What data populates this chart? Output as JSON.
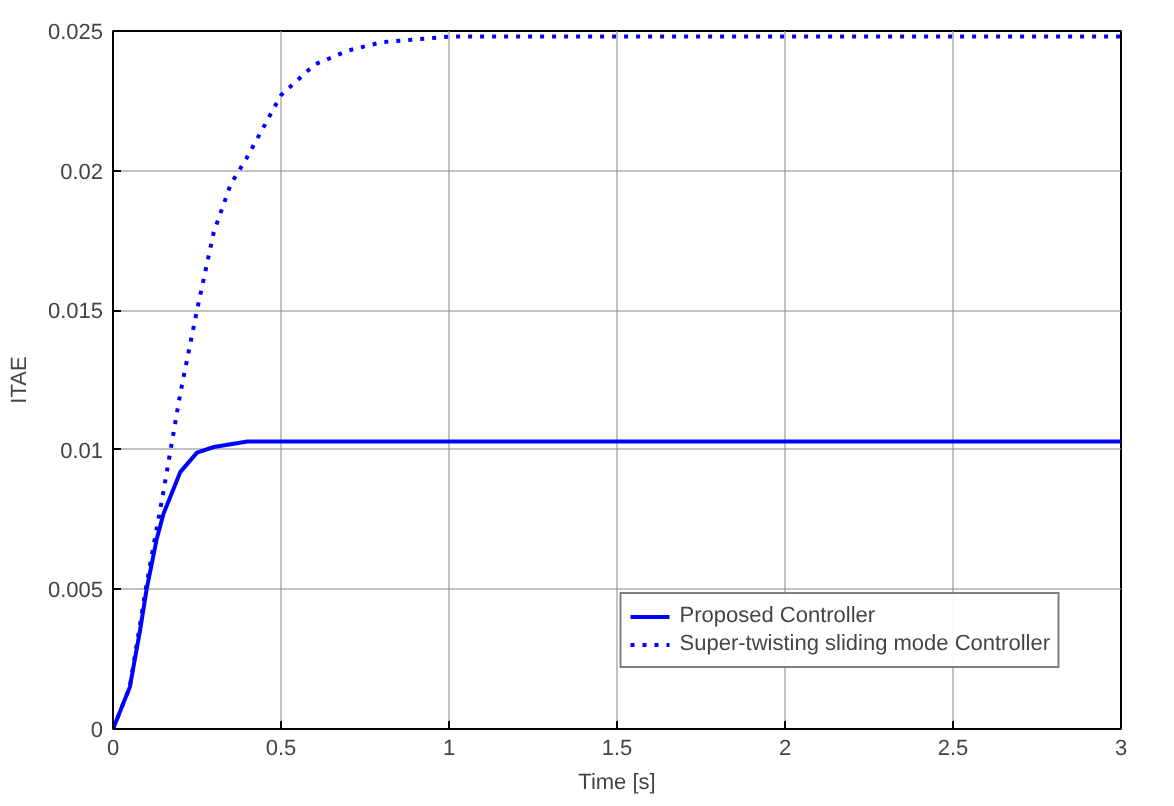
{
  "chart_data": {
    "type": "line",
    "xlabel": "Time [s]",
    "ylabel": "ITAE",
    "xlim": [
      0,
      3
    ],
    "ylim": [
      0,
      0.025
    ],
    "xticks": [
      0,
      0.5,
      1,
      1.5,
      2,
      2.5,
      3
    ],
    "yticks": [
      0,
      0.005,
      0.01,
      0.015,
      0.02,
      0.025
    ],
    "grid": true,
    "legend": "bottom right",
    "series": [
      {
        "name": "Proposed Controller",
        "color": "#0000ff",
        "line_style": "solid",
        "x": [
          0,
          0.05,
          0.08,
          0.1,
          0.13,
          0.15,
          0.2,
          0.25,
          0.3,
          0.4,
          1,
          2,
          3
        ],
        "values": [
          0,
          0.0015,
          0.0035,
          0.005,
          0.0068,
          0.0077,
          0.0092,
          0.0099,
          0.0101,
          0.0103,
          0.0103,
          0.0103,
          0.0103
        ]
      },
      {
        "name": "Super-twisting sliding mode Controller",
        "color": "#0000ff",
        "line_style": "dotted",
        "x": [
          0,
          0.05,
          0.1,
          0.15,
          0.2,
          0.25,
          0.3,
          0.35,
          0.4,
          0.5,
          0.6,
          0.7,
          0.8,
          1,
          2,
          3
        ],
        "values": [
          0,
          0.0015,
          0.0052,
          0.0085,
          0.012,
          0.015,
          0.0178,
          0.0195,
          0.0205,
          0.0227,
          0.0238,
          0.0243,
          0.0246,
          0.0248,
          0.0248,
          0.0248
        ]
      }
    ]
  }
}
